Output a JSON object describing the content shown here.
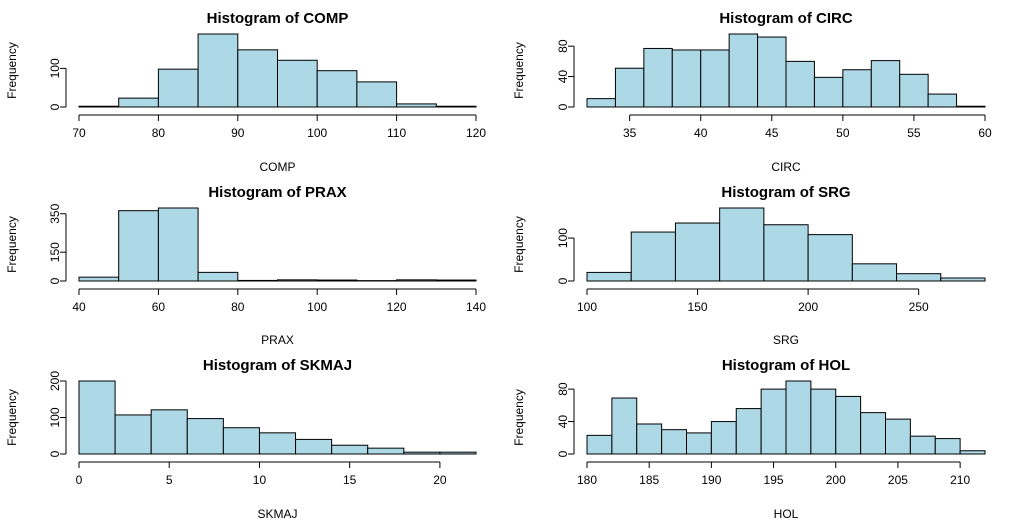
{
  "chart_data": [
    {
      "type": "bar",
      "title": "Histogram of  COMP",
      "xlabel": "COMP",
      "ylabel": "Frequency",
      "bin_edges": [
        70,
        75,
        80,
        85,
        90,
        95,
        100,
        105,
        110,
        115,
        120
      ],
      "values": [
        2,
        23,
        98,
        189,
        148,
        121,
        94,
        65,
        8,
        2
      ],
      "xlim": [
        70,
        120
      ],
      "ylim": [
        0,
        189
      ],
      "x_ticks": [
        70,
        80,
        90,
        100,
        110,
        120
      ],
      "y_ticks": [
        0,
        100
      ],
      "bar_color": "#add8e6"
    },
    {
      "type": "bar",
      "title": "Histogram of  CIRC",
      "xlabel": "CIRC",
      "ylabel": "Frequency",
      "bin_edges": [
        32,
        34,
        36,
        38,
        40,
        42,
        44,
        46,
        48,
        50,
        52,
        54,
        56,
        58,
        60
      ],
      "values": [
        11,
        51,
        77,
        75,
        75,
        96,
        92,
        60,
        39,
        49,
        61,
        43,
        17,
        1
      ],
      "xlim": [
        32,
        60
      ],
      "ylim": [
        0,
        96
      ],
      "x_ticks": [
        35,
        40,
        45,
        50,
        55,
        60
      ],
      "y_ticks": [
        0,
        40,
        80
      ],
      "bar_color": "#add8e6"
    },
    {
      "type": "bar",
      "title": "Histogram of  PRAX",
      "xlabel": "PRAX",
      "ylabel": "Frequency",
      "bin_edges": [
        40,
        50,
        60,
        70,
        80,
        90,
        100,
        110,
        120,
        130,
        140
      ],
      "values": [
        20,
        366,
        380,
        45,
        3,
        6,
        5,
        2,
        6,
        5
      ],
      "xlim": [
        40,
        140
      ],
      "ylim": [
        0,
        380
      ],
      "x_ticks": [
        40,
        60,
        80,
        100,
        120,
        140
      ],
      "y_ticks": [
        0,
        150,
        350
      ],
      "bar_color": "#add8e6"
    },
    {
      "type": "bar",
      "title": "Histogram of  SRG",
      "xlabel": "SRG",
      "ylabel": "Frequency",
      "bin_edges": [
        100,
        120,
        140,
        160,
        180,
        200,
        220,
        240,
        260,
        280
      ],
      "values": [
        20,
        114,
        135,
        170,
        131,
        108,
        40,
        17,
        7
      ],
      "xlim": [
        100,
        280
      ],
      "ylim": [
        0,
        170
      ],
      "x_ticks": [
        100,
        150,
        200,
        250
      ],
      "y_ticks": [
        0,
        100
      ],
      "bar_color": "#add8e6"
    },
    {
      "type": "bar",
      "title": "Histogram of  SKMAJ",
      "xlabel": "SKMAJ",
      "ylabel": "Frequency",
      "bin_edges": [
        0,
        2,
        4,
        6,
        8,
        10,
        12,
        14,
        16,
        18,
        20,
        22
      ],
      "values": [
        200,
        107,
        121,
        97,
        72,
        58,
        40,
        24,
        16,
        5,
        5
      ],
      "xlim": [
        0,
        22
      ],
      "ylim": [
        0,
        200
      ],
      "x_ticks": [
        0,
        5,
        10,
        15,
        20
      ],
      "y_ticks": [
        0,
        100,
        200
      ],
      "bar_color": "#add8e6"
    },
    {
      "type": "bar",
      "title": "Histogram of  HOL",
      "xlabel": "HOL",
      "ylabel": "Frequency",
      "bin_edges": [
        180,
        182,
        184,
        186,
        188,
        190,
        192,
        194,
        196,
        198,
        200,
        202,
        204,
        206,
        208,
        210,
        212
      ],
      "values": [
        23,
        69,
        37,
        30,
        26,
        40,
        56,
        80,
        90,
        80,
        71,
        51,
        43,
        22,
        19,
        4
      ],
      "xlim": [
        180,
        212
      ],
      "ylim": [
        0,
        90
      ],
      "x_ticks": [
        180,
        185,
        190,
        195,
        200,
        205,
        210
      ],
      "y_ticks": [
        0,
        40,
        80
      ],
      "bar_color": "#add8e6"
    }
  ]
}
